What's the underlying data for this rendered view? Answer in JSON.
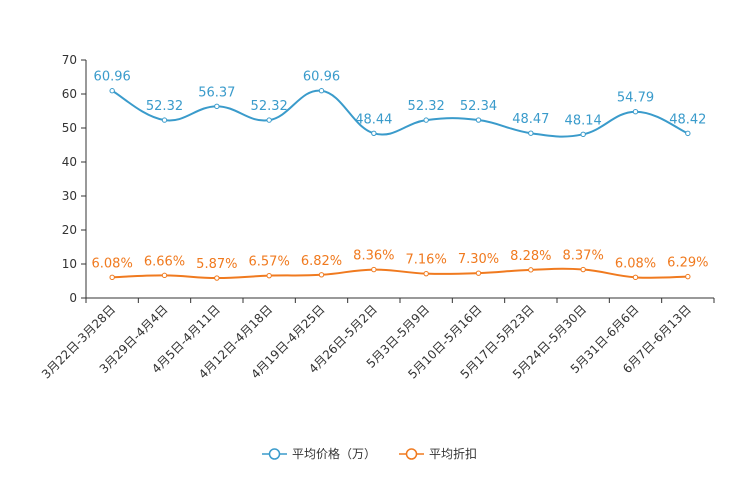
{
  "chart_data": {
    "type": "line",
    "title": "",
    "xlabel": "",
    "ylabel": "",
    "ylim": [
      0,
      70
    ],
    "yticks": [
      "0",
      "10",
      "20",
      "30",
      "40",
      "50",
      "60",
      "70"
    ],
    "categories": [
      "3月22日-3月28日",
      "3月29日-4月4日",
      "4月5日-4月11日",
      "4月12日-4月18日",
      "4月19日-4月25日",
      "4月26日-5月2日",
      "5月3日-5月9日",
      "5月10日-5月16日",
      "5月17日-5月23日",
      "5月24日-5月30日",
      "5月31日-6月6日",
      "6月7日-6月13日"
    ],
    "series": [
      {
        "name": "平均价格（万）",
        "color": "#3a9bcb",
        "values": [
          60.96,
          52.32,
          56.37,
          52.32,
          60.96,
          48.44,
          52.32,
          52.34,
          48.47,
          48.14,
          54.79,
          48.42
        ],
        "labels": [
          "60.96",
          "52.32",
          "56.37",
          "52.32",
          "60.96",
          "48.44",
          "52.32",
          "52.34",
          "48.47",
          "48.14",
          "54.79",
          "48.42"
        ]
      },
      {
        "name": "平均折扣",
        "color": "#f07a1f",
        "values": [
          6.08,
          6.66,
          5.87,
          6.57,
          6.82,
          8.36,
          7.16,
          7.3,
          8.28,
          8.37,
          6.08,
          6.29
        ],
        "labels": [
          "6.08%",
          "6.66%",
          "5.87%",
          "6.57%",
          "6.82%",
          "8.36%",
          "7.16%",
          "7.30%",
          "8.28%",
          "8.37%",
          "6.08%",
          "6.29%"
        ]
      }
    ],
    "legend": "bottom-center",
    "grid": false
  }
}
